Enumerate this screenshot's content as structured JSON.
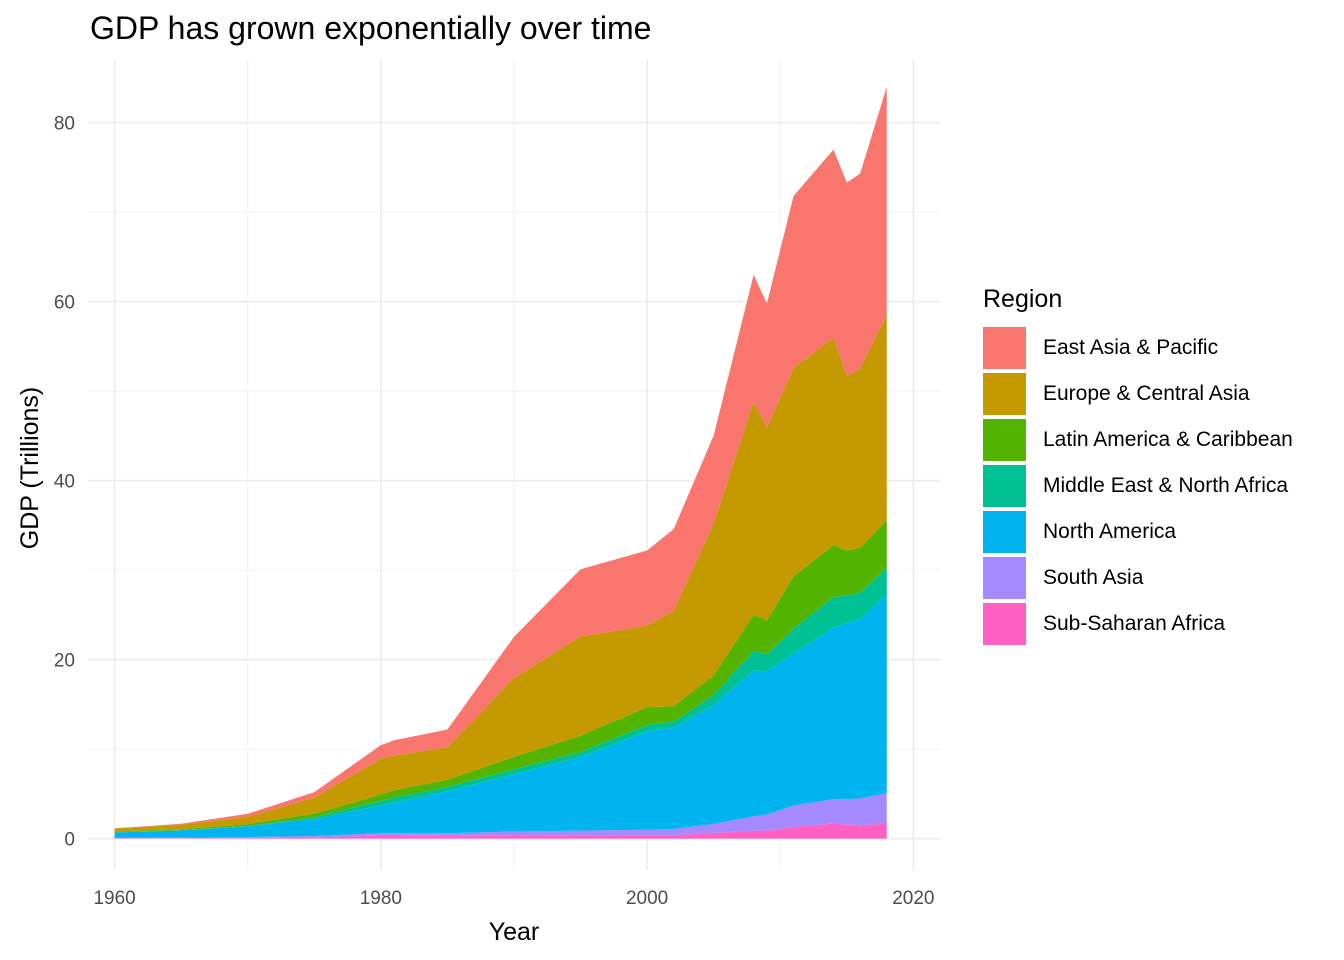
{
  "chart_data": {
    "type": "area",
    "stacked": true,
    "title": "GDP has grown exponentially over time",
    "xlabel": "Year",
    "ylabel": "GDP (Trillions)",
    "xlim": [
      1958,
      2022
    ],
    "ylim": [
      -3.5,
      87
    ],
    "x_ticks": [
      1960,
      1980,
      2000,
      2020
    ],
    "y_ticks": [
      0,
      20,
      40,
      60,
      80
    ],
    "grid": true,
    "legend": {
      "title": "Region",
      "position": "right"
    },
    "x": [
      1960,
      1965,
      1970,
      1975,
      1980,
      1981,
      1985,
      1990,
      1995,
      2000,
      2002,
      2005,
      2008,
      2009,
      2011,
      2014,
      2015,
      2016,
      2018
    ],
    "series": [
      {
        "name": "Sub-Saharan Africa",
        "color": "#FF61C3",
        "values": [
          0.04,
          0.05,
          0.08,
          0.15,
          0.35,
          0.35,
          0.3,
          0.35,
          0.4,
          0.4,
          0.4,
          0.65,
          0.9,
          0.9,
          1.3,
          1.7,
          1.6,
          1.5,
          1.7
        ]
      },
      {
        "name": "South Asia",
        "color": "#A58AFF",
        "values": [
          0.05,
          0.07,
          0.1,
          0.15,
          0.25,
          0.25,
          0.3,
          0.45,
          0.5,
          0.6,
          0.7,
          1.0,
          1.6,
          1.8,
          2.4,
          2.7,
          2.8,
          3.0,
          3.4
        ]
      },
      {
        "name": "North America",
        "color": "#00B4EF",
        "values": [
          0.6,
          0.8,
          1.2,
          1.9,
          3.1,
          3.4,
          4.7,
          6.4,
          8.2,
          11.0,
          11.3,
          13.3,
          16.3,
          16.0,
          17.0,
          19.2,
          19.7,
          20.0,
          22.2
        ]
      },
      {
        "name": "Middle East & North Africa",
        "color": "#00C094",
        "values": [
          0.02,
          0.03,
          0.05,
          0.2,
          0.55,
          0.6,
          0.5,
          0.55,
          0.6,
          0.7,
          0.7,
          1.1,
          2.2,
          1.9,
          2.8,
          3.4,
          3.1,
          3.0,
          3.0
        ]
      },
      {
        "name": "Latin America & Caribbean",
        "color": "#53B400",
        "values": [
          0.1,
          0.12,
          0.2,
          0.4,
          0.7,
          0.8,
          0.8,
          1.4,
          1.8,
          2.0,
          1.7,
          2.2,
          4.0,
          3.8,
          5.8,
          5.8,
          5.0,
          5.0,
          5.3
        ]
      },
      {
        "name": "Europe & Central Asia",
        "color": "#C49A00",
        "values": [
          0.3,
          0.5,
          0.8,
          1.8,
          4.0,
          3.9,
          3.6,
          8.8,
          11.1,
          9.1,
          10.7,
          17.0,
          23.8,
          21.5,
          23.3,
          23.2,
          19.5,
          20.0,
          23.0
        ]
      },
      {
        "name": "East Asia & Pacific",
        "color": "#F8766D",
        "values": [
          0.05,
          0.1,
          0.35,
          0.6,
          1.5,
          1.7,
          2.0,
          4.6,
          7.5,
          8.4,
          9.1,
          9.8,
          14.2,
          13.9,
          19.2,
          21.0,
          21.6,
          21.8,
          25.4
        ]
      }
    ]
  }
}
